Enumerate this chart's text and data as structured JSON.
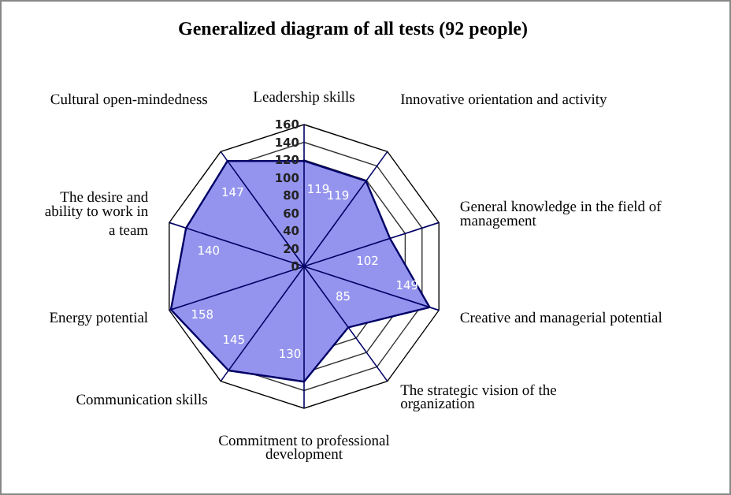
{
  "chart_data": {
    "type": "radar",
    "title": "Generalized diagram of all tests (92 people)",
    "categories": [
      "Leadership skills",
      "Innovative orientation and activity",
      "General knowledge in the field of management",
      "Creative and managerial potential",
      "The strategic vision of the organization",
      "Commitment to professional development",
      "Communication skills",
      "Energy potential",
      "The desire and ability to work in a team",
      "Cultural open-mindedness"
    ],
    "series": [
      {
        "color": "#9494ee",
        "values": [
          119,
          119,
          102,
          149,
          85,
          130,
          145,
          158,
          140,
          147
        ]
      }
    ],
    "ylim": [
      0,
      160
    ],
    "yticks": [
      0,
      20,
      40,
      60,
      80,
      100,
      120,
      140,
      160
    ],
    "grid": true,
    "data_labels": true
  }
}
